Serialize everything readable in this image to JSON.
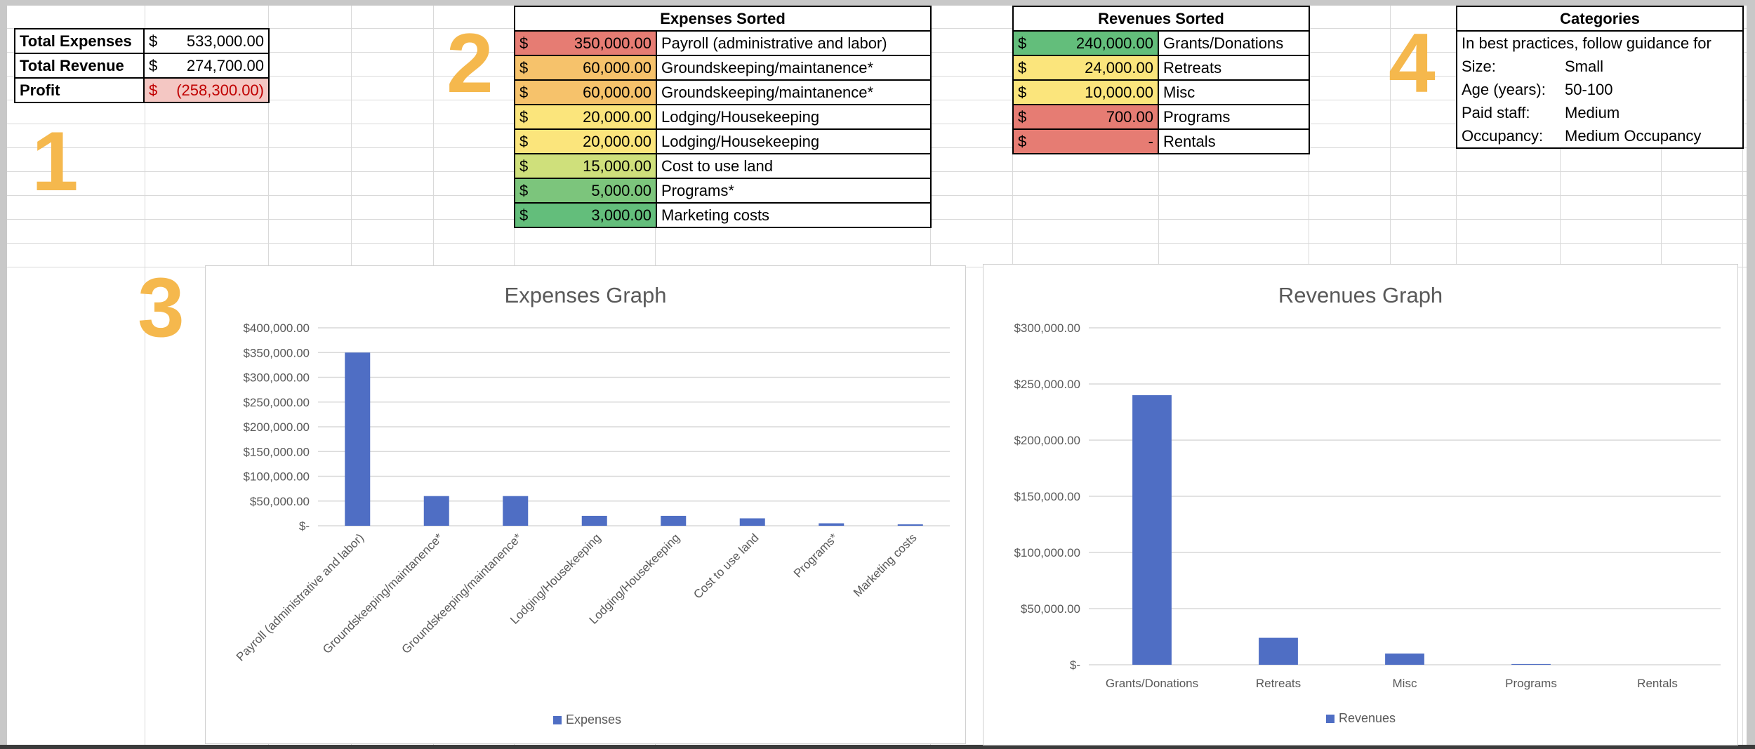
{
  "summary": {
    "rows": [
      {
        "label": "Total Expenses",
        "currency": "$",
        "amount": "533,000.00",
        "highlight": false
      },
      {
        "label": "Total Revenue",
        "currency": "$",
        "amount": "274,700.00",
        "highlight": false
      },
      {
        "label": "Profit",
        "currency": "$",
        "amount": "(258,300.00)",
        "highlight": true
      }
    ],
    "highlight_color": "#f4c7c3",
    "negative_text_color": "#c00000"
  },
  "markers": [
    "1",
    "2",
    "3",
    "4"
  ],
  "marker_color": "#f5b84d",
  "expenses_table": {
    "title": "Expenses Sorted",
    "rows": [
      {
        "currency": "$",
        "amount": "350,000.00",
        "name": "Payroll (administrative and labor)",
        "color": "#e67c73"
      },
      {
        "currency": "$",
        "amount": "60,000.00",
        "name": "Groundskeeping/maintanence*",
        "color": "#f6c26b"
      },
      {
        "currency": "$",
        "amount": "60,000.00",
        "name": "Groundskeeping/maintanence*",
        "color": "#f6c26b"
      },
      {
        "currency": "$",
        "amount": "20,000.00",
        "name": "Lodging/Housekeeping",
        "color": "#fbe57c"
      },
      {
        "currency": "$",
        "amount": "20,000.00",
        "name": "Lodging/Housekeeping",
        "color": "#fbe57c"
      },
      {
        "currency": "$",
        "amount": "15,000.00",
        "name": "Cost to use land",
        "color": "#cfe07b"
      },
      {
        "currency": "$",
        "amount": "5,000.00",
        "name": "Programs*",
        "color": "#7cc57c"
      },
      {
        "currency": "$",
        "amount": "3,000.00",
        "name": "Marketing costs",
        "color": "#63be7b"
      }
    ]
  },
  "revenues_table": {
    "title": "Revenues Sorted",
    "rows": [
      {
        "currency": "$",
        "amount": "240,000.00",
        "name": "Grants/Donations",
        "color": "#63be7b"
      },
      {
        "currency": "$",
        "amount": "24,000.00",
        "name": "Retreats",
        "color": "#fbe57c"
      },
      {
        "currency": "$",
        "amount": "10,000.00",
        "name": "Misc",
        "color": "#fbe57c"
      },
      {
        "currency": "$",
        "amount": "700.00",
        "name": "Programs",
        "color": "#e67c73"
      },
      {
        "currency": "$",
        "amount": "-",
        "name": "Rentals",
        "color": "#e67c73"
      }
    ]
  },
  "categories_table": {
    "title": "Categories",
    "intro": "In best practices, follow guidance for",
    "rows": [
      {
        "key": "Size:",
        "value": "Small"
      },
      {
        "key": "Age (years):",
        "value": "50-100"
      },
      {
        "key": "Paid staff:",
        "value": "Medium"
      },
      {
        "key": "Occupancy:",
        "value": "Medium Occupancy"
      }
    ]
  },
  "chart_data": [
    {
      "type": "bar",
      "title": "Expenses Graph",
      "categories": [
        "Payroll (administrative and labor)",
        "Groundskeeping/maintanence*",
        "Groundskeeping/maintanence*",
        "Lodging/Housekeeping",
        "Lodging/Housekeeping",
        "Cost to use land",
        "Programs*",
        "Marketing costs"
      ],
      "series": [
        {
          "name": "Expenses",
          "values": [
            350000,
            60000,
            60000,
            20000,
            20000,
            15000,
            5000,
            3000
          ]
        }
      ],
      "ylim": [
        0,
        400000
      ],
      "ticks": [
        "$-",
        "$50,000.00",
        "$100,000.00",
        "$150,000.00",
        "$200,000.00",
        "$250,000.00",
        "$300,000.00",
        "$350,000.00",
        "$400,000.00"
      ],
      "grid": true,
      "legend": "bottom",
      "bar_color": "#4f6ec4"
    },
    {
      "type": "bar",
      "title": "Revenues Graph",
      "categories": [
        "Grants/Donations",
        "Retreats",
        "Misc",
        "Programs",
        "Rentals"
      ],
      "series": [
        {
          "name": "Revenues",
          "values": [
            240000,
            24000,
            10000,
            700,
            0
          ]
        }
      ],
      "ylim": [
        0,
        300000
      ],
      "ticks": [
        "$-",
        "$50,000.00",
        "$100,000.00",
        "$150,000.00",
        "$200,000.00",
        "$250,000.00",
        "$300,000.00"
      ],
      "grid": true,
      "legend": "bottom",
      "bar_color": "#4f6ec4"
    }
  ]
}
